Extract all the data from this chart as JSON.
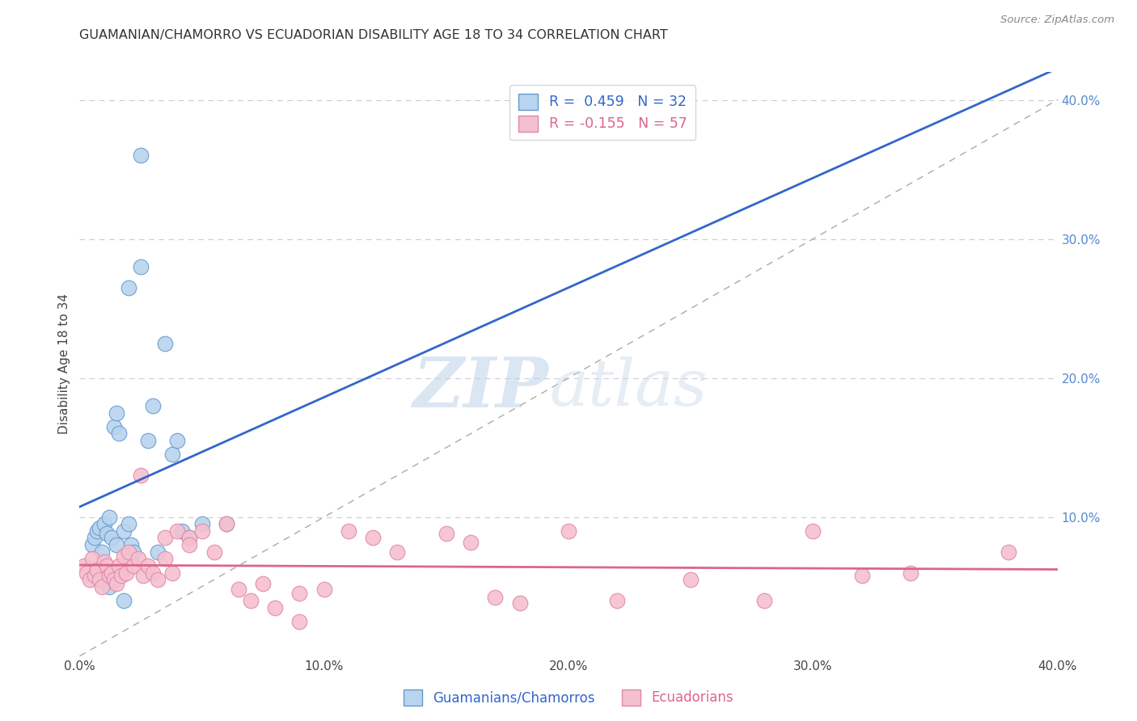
{
  "title": "GUAMANIAN/CHAMORRO VS ECUADORIAN DISABILITY AGE 18 TO 34 CORRELATION CHART",
  "source": "Source: ZipAtlas.com",
  "ylabel": "Disability Age 18 to 34",
  "xlim": [
    0.0,
    0.4
  ],
  "ylim": [
    0.0,
    0.42
  ],
  "blue_R": 0.459,
  "blue_N": 32,
  "pink_R": -0.155,
  "pink_N": 57,
  "blue_color": "#b8d4ee",
  "blue_edge_color": "#6699cc",
  "blue_line_color": "#3366cc",
  "pink_color": "#f5c0ce",
  "pink_edge_color": "#dd88aa",
  "pink_line_color": "#dd6688",
  "legend_label_blue": "Guamanians/Chamorros",
  "legend_label_pink": "Ecuadorians",
  "watermark_zip": "ZIP",
  "watermark_atlas": "atlas",
  "background_color": "#ffffff",
  "grid_color": "#cccccc",
  "blue_x": [
    0.005,
    0.006,
    0.007,
    0.008,
    0.009,
    0.01,
    0.011,
    0.012,
    0.013,
    0.014,
    0.015,
    0.016,
    0.018,
    0.02,
    0.021,
    0.022,
    0.025,
    0.028,
    0.03,
    0.032,
    0.035,
    0.038,
    0.04,
    0.042,
    0.045,
    0.05,
    0.025,
    0.06,
    0.015,
    0.012,
    0.02,
    0.018
  ],
  "blue_y": [
    0.08,
    0.085,
    0.09,
    0.092,
    0.075,
    0.095,
    0.088,
    0.1,
    0.085,
    0.165,
    0.175,
    0.16,
    0.09,
    0.265,
    0.08,
    0.075,
    0.36,
    0.155,
    0.18,
    0.075,
    0.225,
    0.145,
    0.155,
    0.09,
    0.085,
    0.095,
    0.28,
    0.095,
    0.08,
    0.05,
    0.095,
    0.04
  ],
  "pink_x": [
    0.002,
    0.003,
    0.004,
    0.005,
    0.006,
    0.007,
    0.008,
    0.009,
    0.01,
    0.011,
    0.012,
    0.013,
    0.014,
    0.015,
    0.016,
    0.017,
    0.018,
    0.019,
    0.02,
    0.022,
    0.024,
    0.026,
    0.028,
    0.03,
    0.032,
    0.035,
    0.038,
    0.04,
    0.045,
    0.05,
    0.06,
    0.07,
    0.08,
    0.09,
    0.1,
    0.11,
    0.12,
    0.13,
    0.15,
    0.16,
    0.17,
    0.18,
    0.2,
    0.22,
    0.25,
    0.28,
    0.3,
    0.32,
    0.34,
    0.38,
    0.025,
    0.035,
    0.045,
    0.055,
    0.065,
    0.075,
    0.09
  ],
  "pink_y": [
    0.065,
    0.06,
    0.055,
    0.07,
    0.058,
    0.062,
    0.055,
    0.05,
    0.068,
    0.065,
    0.058,
    0.06,
    0.055,
    0.052,
    0.065,
    0.058,
    0.072,
    0.06,
    0.075,
    0.065,
    0.07,
    0.058,
    0.065,
    0.06,
    0.055,
    0.085,
    0.06,
    0.09,
    0.085,
    0.09,
    0.095,
    0.04,
    0.035,
    0.045,
    0.048,
    0.09,
    0.085,
    0.075,
    0.088,
    0.082,
    0.042,
    0.038,
    0.09,
    0.04,
    0.055,
    0.04,
    0.09,
    0.058,
    0.06,
    0.075,
    0.13,
    0.07,
    0.08,
    0.075,
    0.048,
    0.052,
    0.025
  ],
  "right_tick_color": "#5588cc"
}
